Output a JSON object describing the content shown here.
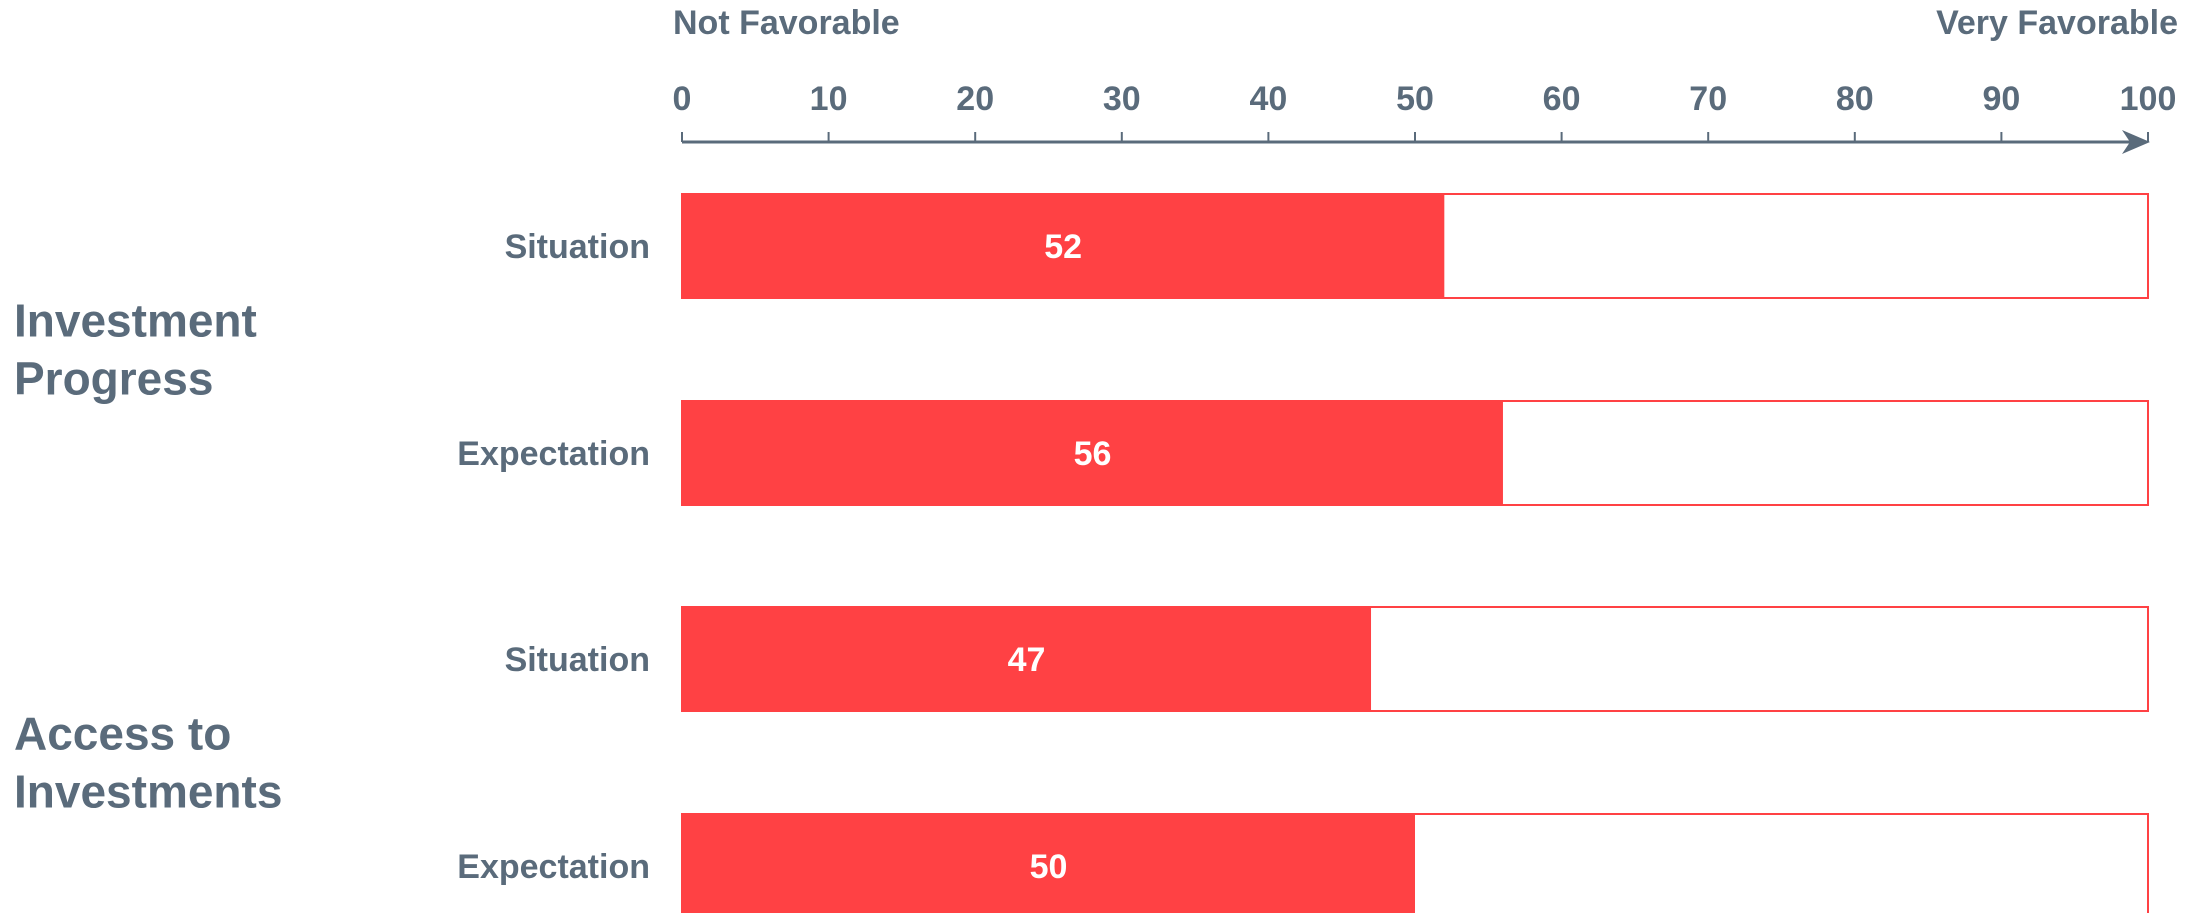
{
  "chart_data": {
    "type": "bar",
    "orientation": "horizontal",
    "scale": {
      "low_label": "Not Favorable",
      "high_label": "Very Favorable",
      "min": 0,
      "max": 100,
      "ticks": [
        0,
        10,
        20,
        30,
        40,
        50,
        60,
        70,
        80,
        90,
        100
      ]
    },
    "groups": [
      {
        "name": "Investment Progress",
        "bars": [
          {
            "label": "Situation",
            "value": 52
          },
          {
            "label": "Expectation",
            "value": 56
          }
        ]
      },
      {
        "name": "Access to Investments",
        "bars": [
          {
            "label": "Situation",
            "value": 47
          },
          {
            "label": "Expectation",
            "value": 50
          }
        ]
      }
    ],
    "grid": false,
    "legend": "none",
    "colors": {
      "bar_fill": "#ff4144",
      "bar_outline": "#ff4144",
      "track_fill": "#ffffff",
      "text": "#5a6b7b",
      "value_label": "#ffffff",
      "axis": "#5a6b7b"
    }
  }
}
